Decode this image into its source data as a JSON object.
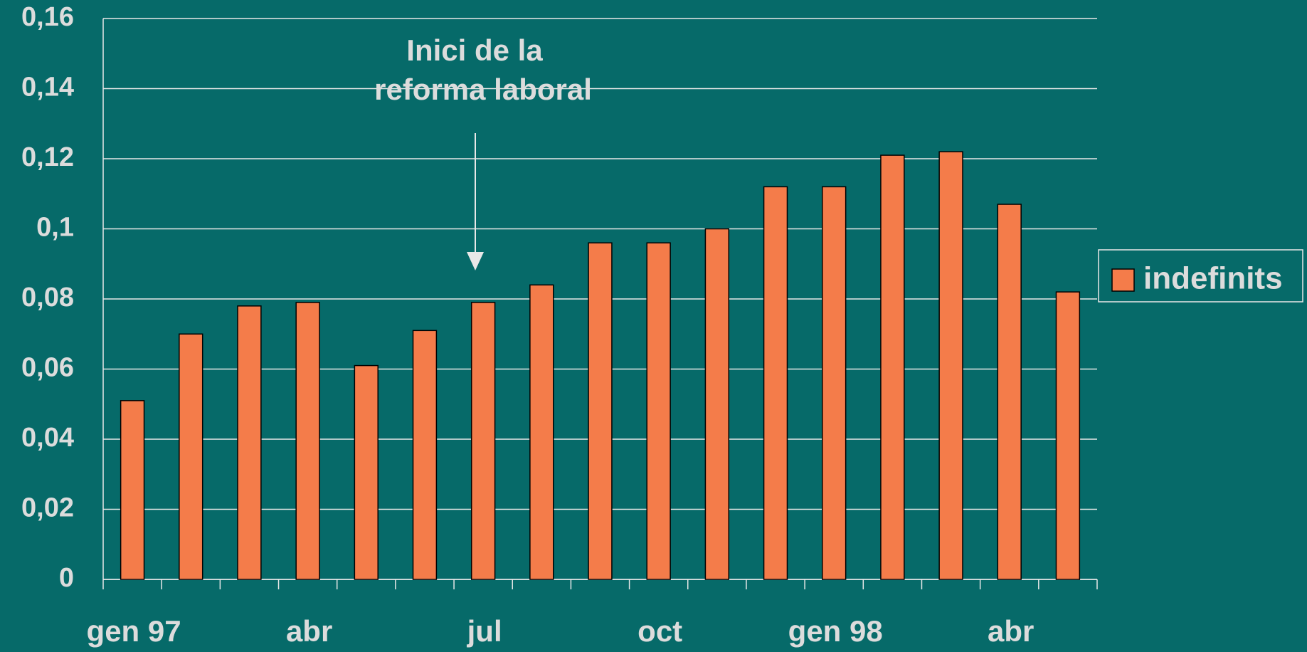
{
  "chart_data": {
    "type": "bar",
    "categories": [
      "gen 97",
      null,
      null,
      "abr",
      null,
      null,
      "jul",
      null,
      null,
      "oct",
      null,
      null,
      "gen 98",
      null,
      null,
      "abr",
      null
    ],
    "series": [
      {
        "name": "indefinits",
        "color": "#f47c4a",
        "values": [
          0.051,
          0.07,
          0.078,
          0.079,
          0.061,
          0.071,
          0.079,
          0.084,
          0.096,
          0.096,
          0.1,
          0.112,
          0.112,
          0.121,
          0.122,
          0.107,
          0.082
        ]
      }
    ],
    "ylim": [
      0,
      0.16
    ],
    "yticks": [
      0,
      {
        "value": 0.02,
        "label": "0,02"
      },
      {
        "value": 0.04,
        "label": "0,04"
      },
      {
        "value": 0.06,
        "label": "0,06"
      },
      {
        "value": 0.08,
        "label": "0,08"
      },
      {
        "value": 0.1,
        "label": "0,1"
      },
      {
        "value": 0.12,
        "label": "0,12"
      },
      {
        "value": 0.14,
        "label": "0,14"
      },
      {
        "value": 0.16,
        "label": "0,16"
      }
    ],
    "grid": true,
    "legend": "right",
    "annotation": [
      "Inici de la",
      "reforma laboral"
    ]
  }
}
